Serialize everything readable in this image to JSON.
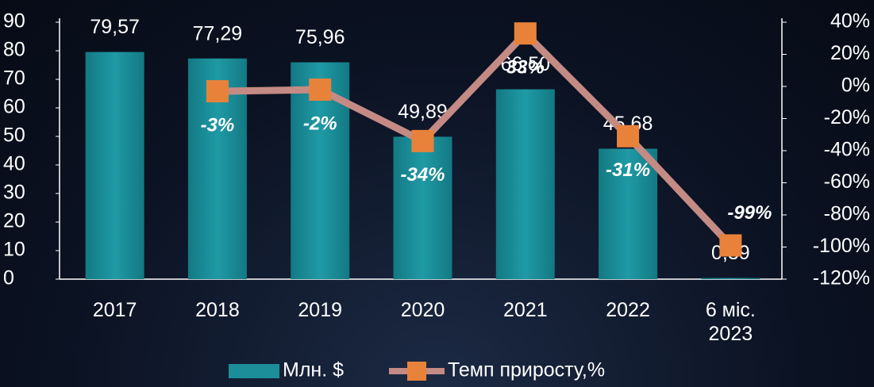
{
  "chart_data": {
    "type": "bar-line",
    "categories": [
      "2017",
      "2018",
      "2019",
      "2020",
      "2021",
      "2022",
      "6 міс. 2023"
    ],
    "series": [
      {
        "name": "Млн. $",
        "type": "bar",
        "color": "#1b8e99",
        "values": [
          79.57,
          77.29,
          75.96,
          49.89,
          66.5,
          45.68,
          0.39
        ],
        "value_labels": [
          "79,57",
          "77,29",
          "75,96",
          "49,89",
          "66,50",
          "45,68",
          "0,39"
        ]
      },
      {
        "name": "Темп приросту,%",
        "type": "line",
        "axis": "y2",
        "color": "#c48a84",
        "marker_color": "#e8823a",
        "values": [
          null,
          -3,
          -2,
          -34,
          33,
          -31,
          -99
        ],
        "value_labels": [
          null,
          "-3%",
          "-2%",
          "-34%",
          "33%",
          "-31%",
          "-99%"
        ]
      }
    ],
    "ylim": [
      0,
      90
    ],
    "yticks": [
      0,
      10,
      20,
      30,
      40,
      50,
      60,
      70,
      80,
      90
    ],
    "y2lim": [
      -120,
      40
    ],
    "y2ticks": [
      {
        "value": -120,
        "label": "-120%"
      },
      {
        "value": -100,
        "label": "-100%"
      },
      {
        "value": -80,
        "label": "-80%"
      },
      {
        "value": -60,
        "label": "-60%"
      },
      {
        "value": -40,
        "label": "-40%"
      },
      {
        "value": -20,
        "label": "-20%"
      },
      {
        "value": 0,
        "label": "0%"
      },
      {
        "value": 20,
        "label": "20%"
      },
      {
        "value": 40,
        "label": "40%"
      }
    ],
    "legend": "bottom"
  }
}
